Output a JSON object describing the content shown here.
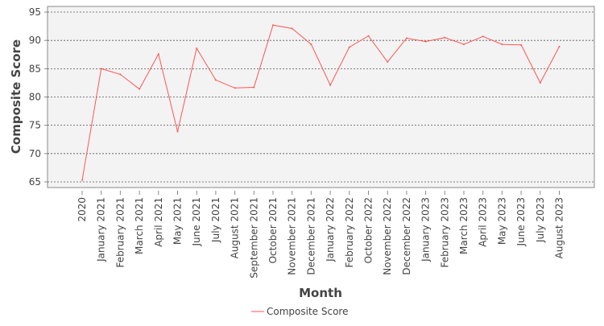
{
  "chart_data": {
    "type": "line",
    "xlabel": "Month",
    "ylabel": "Composite Score",
    "ylim": [
      64,
      96
    ],
    "yticks": [
      65,
      70,
      75,
      80,
      85,
      90,
      95
    ],
    "grid": true,
    "legend_position": "bottom-center",
    "categories": [
      "2020",
      "January 2021",
      "February 2021",
      "March 2021",
      "April 2021",
      "May 2021",
      "June 2021",
      "July 2021",
      "August 2021",
      "September 2021",
      "October 2021",
      "November 2021",
      "December 2021",
      "January 2022",
      "February 2022",
      "October 2022",
      "November 2022",
      "December 2022",
      "January 2023",
      "February 2023",
      "March 2023",
      "April 2023",
      "May 2023",
      "June 2023",
      "July 2023",
      "August 2023"
    ],
    "series": [
      {
        "name": "Composite Score",
        "color": "#ff5555",
        "values": [
          65.3,
          85.0,
          84.0,
          81.4,
          87.6,
          73.9,
          88.6,
          83.0,
          81.6,
          81.7,
          92.7,
          92.1,
          89.3,
          82.1,
          88.8,
          90.8,
          86.2,
          90.4,
          89.8,
          90.5,
          89.3,
          90.7,
          89.3,
          89.2,
          82.5,
          88.9
        ]
      }
    ]
  }
}
